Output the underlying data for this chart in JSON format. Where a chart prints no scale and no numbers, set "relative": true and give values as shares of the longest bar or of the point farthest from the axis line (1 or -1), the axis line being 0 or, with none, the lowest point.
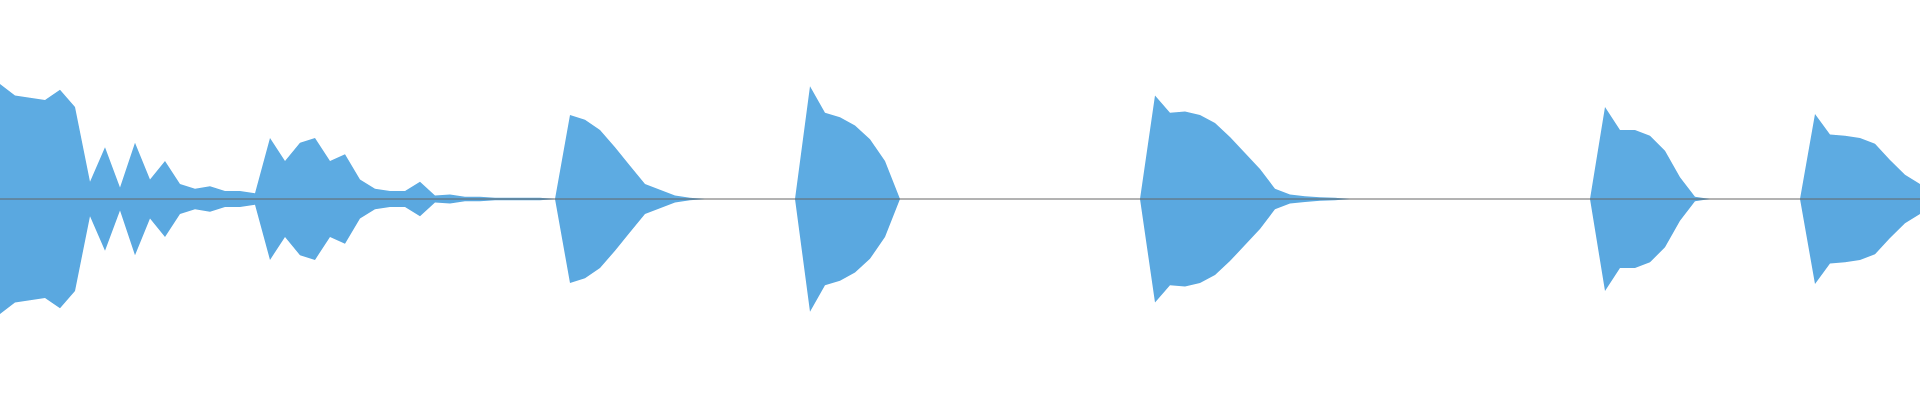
{
  "chart_data": {
    "type": "area",
    "relative": true,
    "categories": [
      null,
      null,
      null,
      null,
      null,
      null,
      null,
      null,
      null,
      null,
      null,
      null,
      null,
      null,
      null,
      null,
      null,
      null,
      null,
      null,
      null,
      null,
      null,
      null,
      null,
      null,
      null,
      null,
      null,
      null,
      null,
      null,
      null,
      null,
      null,
      null,
      null,
      null,
      null,
      null,
      null,
      null,
      null,
      null,
      null,
      null,
      null,
      null,
      null,
      null,
      null,
      null,
      null,
      null,
      null,
      null,
      null,
      null,
      null,
      null,
      null,
      null,
      null,
      null,
      null,
      null,
      null,
      null,
      null,
      null,
      null,
      null,
      null,
      null,
      null,
      null,
      null,
      null,
      null,
      null,
      null,
      null,
      null,
      null,
      null,
      null,
      null,
      null,
      null,
      null,
      null,
      null,
      null,
      null,
      null,
      null,
      null,
      null,
      null,
      null,
      null,
      null,
      null,
      null,
      null,
      null,
      null,
      null,
      null,
      null,
      null,
      null,
      null,
      null,
      null,
      null,
      null,
      null,
      null,
      null,
      null,
      null,
      null,
      null,
      null,
      null,
      null,
      null,
      null
    ],
    "series": [
      {
        "color": "#5dabe2",
        "values": [
          1.0,
          0.9,
          0.88,
          0.86,
          0.95,
          0.8,
          0.15,
          0.45,
          0.1,
          0.49,
          0.17,
          0.33,
          0.13,
          0.09,
          0.11,
          0.07,
          0.07,
          0.05,
          0.53,
          0.33,
          0.49,
          0.53,
          0.33,
          0.39,
          0.17,
          0.09,
          0.07,
          0.07,
          0.15,
          0.03,
          0.04,
          0.02,
          0.02,
          0.01,
          0.01,
          0.01,
          0.01,
          0,
          0.73,
          0.69,
          0.6,
          0.45,
          0.29,
          0.13,
          0.08,
          0.03,
          0.01,
          0,
          0,
          0,
          0,
          0,
          0,
          0,
          0.98,
          0.75,
          0.71,
          0.64,
          0.52,
          0.33,
          0,
          0,
          0,
          0,
          0,
          0,
          0,
          0,
          0,
          0,
          0,
          0,
          0,
          0,
          0,
          0,
          0,
          0.9,
          0.75,
          0.76,
          0.73,
          0.66,
          0.54,
          0.4,
          0.26,
          0.09,
          0.04,
          0.025,
          0.015,
          0.01,
          0,
          0,
          0,
          0,
          0,
          0,
          0,
          0,
          0,
          0,
          0,
          0,
          0,
          0,
          0,
          0,
          0,
          0.8,
          0.6,
          0.6,
          0.55,
          0.42,
          0.19,
          0.02,
          0,
          0,
          0,
          0,
          0,
          0,
          0,
          0.74,
          0.56,
          0.55,
          0.53,
          0.48,
          0.34,
          0.21,
          0.13
        ]
      },
      {
        "color": "#5aa8e0",
        "values": [
          -1.0,
          -0.9,
          -0.88,
          -0.86,
          -0.95,
          -0.8,
          -0.15,
          -0.45,
          -0.1,
          -0.49,
          -0.17,
          -0.33,
          -0.13,
          -0.09,
          -0.11,
          -0.07,
          -0.07,
          -0.05,
          -0.53,
          -0.33,
          -0.49,
          -0.53,
          -0.33,
          -0.39,
          -0.17,
          -0.09,
          -0.07,
          -0.07,
          -0.15,
          -0.03,
          -0.04,
          -0.02,
          -0.02,
          -0.01,
          -0.01,
          -0.01,
          -0.01,
          0,
          -0.73,
          -0.69,
          -0.6,
          -0.45,
          -0.29,
          -0.13,
          -0.08,
          -0.03,
          -0.01,
          0,
          0,
          0,
          0,
          0,
          0,
          0,
          -0.98,
          -0.75,
          -0.71,
          -0.64,
          -0.52,
          -0.33,
          0,
          0,
          0,
          0,
          0,
          0,
          0,
          0,
          0,
          0,
          0,
          0,
          0,
          0,
          0,
          0,
          0,
          -0.9,
          -0.75,
          -0.76,
          -0.73,
          -0.66,
          -0.54,
          -0.4,
          -0.26,
          -0.09,
          -0.04,
          -0.025,
          -0.015,
          -0.01,
          0,
          0,
          0,
          0,
          0,
          0,
          0,
          0,
          0,
          0,
          0,
          0,
          0,
          0,
          0,
          0,
          0,
          -0.8,
          -0.6,
          -0.6,
          -0.55,
          -0.42,
          -0.19,
          -0.02,
          0,
          0,
          0,
          0,
          0,
          0,
          0,
          -0.74,
          -0.56,
          -0.55,
          -0.53,
          -0.48,
          -0.34,
          -0.21,
          -0.13
        ]
      }
    ]
  }
}
